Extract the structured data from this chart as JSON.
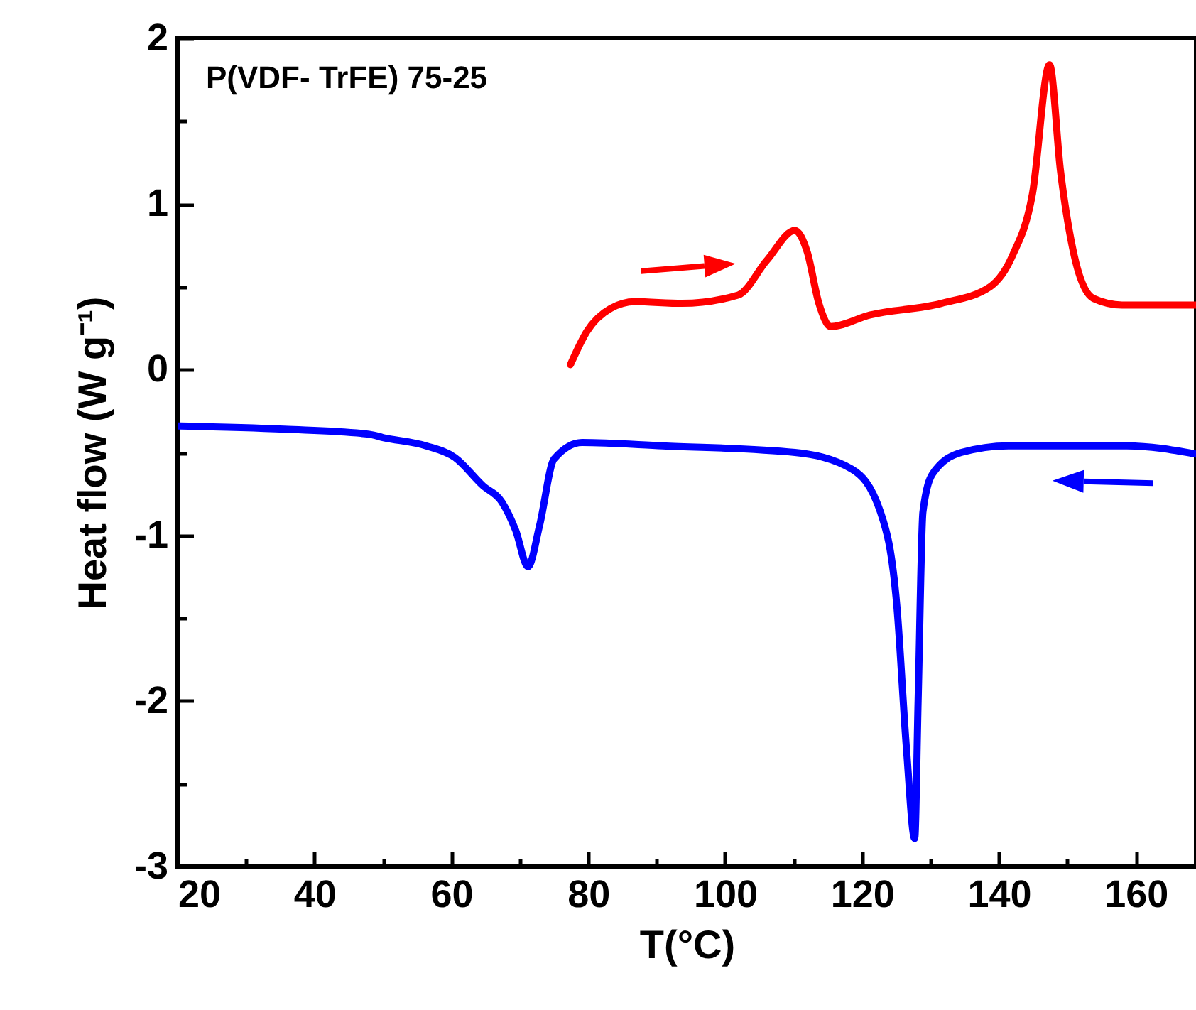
{
  "chart_data": {
    "type": "line",
    "xlabel": "T(°C)",
    "ylabel": "Heat flow (W g⁻¹)",
    "annotations": [
      "P(VDF- TrFE) 75-25"
    ],
    "xlim": [
      20,
      168.8
    ],
    "xticks": [
      20,
      {
        "value": 30,
        "label": null
      },
      40,
      {
        "value": 50,
        "label": null
      },
      60,
      {
        "value": 70,
        "label": null
      },
      80,
      {
        "value": 90,
        "label": null
      },
      100,
      {
        "value": 110,
        "label": null
      },
      120,
      {
        "value": 130,
        "label": null
      },
      140,
      {
        "value": 150,
        "label": null
      },
      160
    ],
    "ylim": [
      -3,
      2
    ],
    "yticks": [
      -3,
      {
        "value": -2.5,
        "label": null
      },
      -2,
      {
        "value": -1.5,
        "label": null
      },
      -1,
      {
        "value": -0.5,
        "label": null
      },
      0,
      {
        "value": 0.5,
        "label": null
      },
      1,
      {
        "value": 1.5,
        "label": null
      },
      2
    ],
    "grid": false,
    "marker": "none",
    "line_style": "solid",
    "series": [
      {
        "color": "#ff0000",
        "x": [
          77.4,
          79.8,
          83.3,
          86.8,
          93.7,
          101.9,
          106.1,
          110.2,
          112,
          113.7,
          115.4,
          121.2,
          131.6,
          138.7,
          142,
          144.9,
          147.4,
          149,
          151,
          153.8,
          158,
          168.8
        ],
        "values": [
          0.03,
          0.23,
          0.37,
          0.41,
          0.4,
          0.45,
          0.66,
          0.84,
          0.71,
          0.4,
          0.26,
          0.33,
          0.4,
          0.5,
          0.69,
          1.06,
          1.84,
          1.2,
          0.69,
          0.43,
          0.39,
          0.39
        ]
      },
      {
        "color": "#0000ff",
        "x": [
          20,
          35.6,
          48,
          50,
          56.3,
          60.5,
          64.6,
          67.4,
          69.4,
          71.2,
          72.9,
          75,
          79.1,
          90.9,
          110.2,
          118.5,
          122.7,
          125.1,
          126.5,
          127.7,
          128.2,
          128.9,
          130.3,
          134.5,
          141.4,
          158.7,
          168.8
        ],
        "values": [
          -0.34,
          -0.36,
          -0.39,
          -0.41,
          -0.46,
          -0.53,
          -0.7,
          -0.8,
          -0.97,
          -1.19,
          -0.94,
          -0.54,
          -0.44,
          -0.46,
          -0.5,
          -0.6,
          -0.86,
          -1.43,
          -2.29,
          -2.83,
          -2.0,
          -0.86,
          -0.63,
          -0.5,
          -0.46,
          -0.46,
          -0.51
        ]
      }
    ]
  }
}
